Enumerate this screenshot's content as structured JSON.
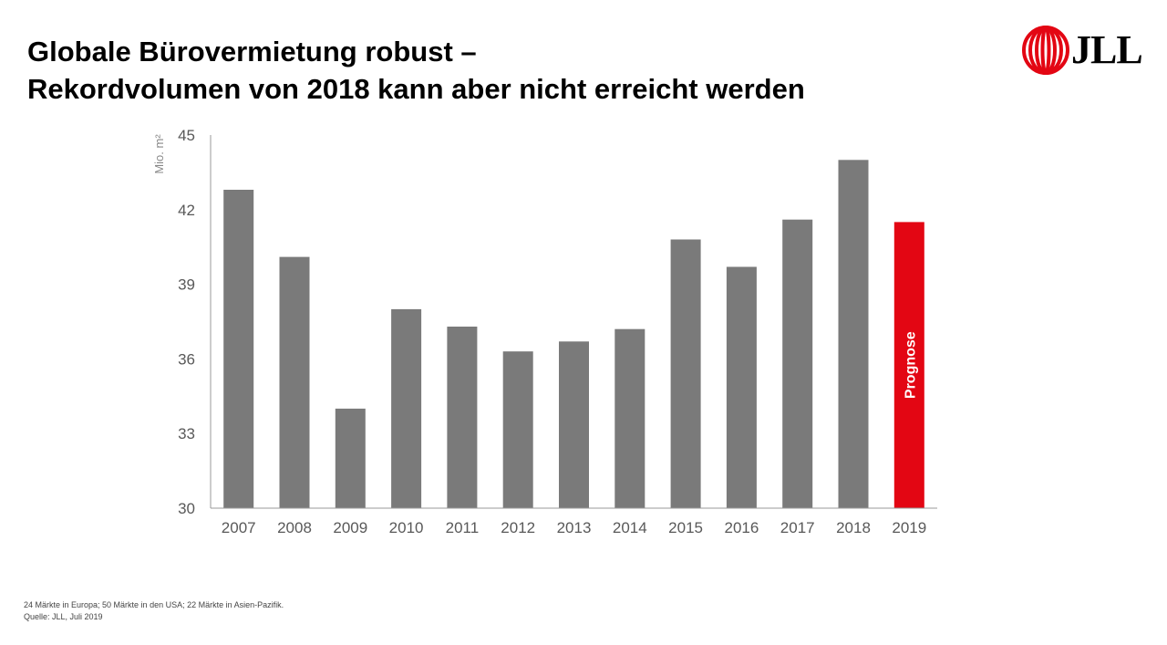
{
  "title": {
    "line1": "Globale Bürovermietung robust –",
    "line2": "Rekordvolumen von 2018 kann aber nicht erreicht werden"
  },
  "logo": {
    "text": "JLL",
    "mark_color": "#e30613"
  },
  "chart_data": {
    "type": "bar",
    "title": "",
    "xlabel": "",
    "ylabel": "Mio. m²",
    "ylim": [
      30,
      45
    ],
    "yticks": [
      30,
      33,
      36,
      39,
      42,
      45
    ],
    "grid": false,
    "categories": [
      "2007",
      "2008",
      "2009",
      "2010",
      "2011",
      "2012",
      "2013",
      "2014",
      "2015",
      "2016",
      "2017",
      "2018",
      "2019"
    ],
    "values": [
      42.8,
      40.1,
      34.0,
      38.0,
      37.3,
      36.3,
      36.7,
      37.2,
      40.8,
      39.7,
      41.6,
      44.0,
      41.5
    ],
    "bar_color": "#7a7a7a",
    "highlight": {
      "category": "2019",
      "color": "#e30613",
      "label": "Prognose"
    }
  },
  "footer": {
    "line1": "24 Märkte in Europa; 50 Märkte in den USA; 22 Märkte in Asien-Pazifik.",
    "line2": "Quelle: JLL, Juli 2019"
  }
}
